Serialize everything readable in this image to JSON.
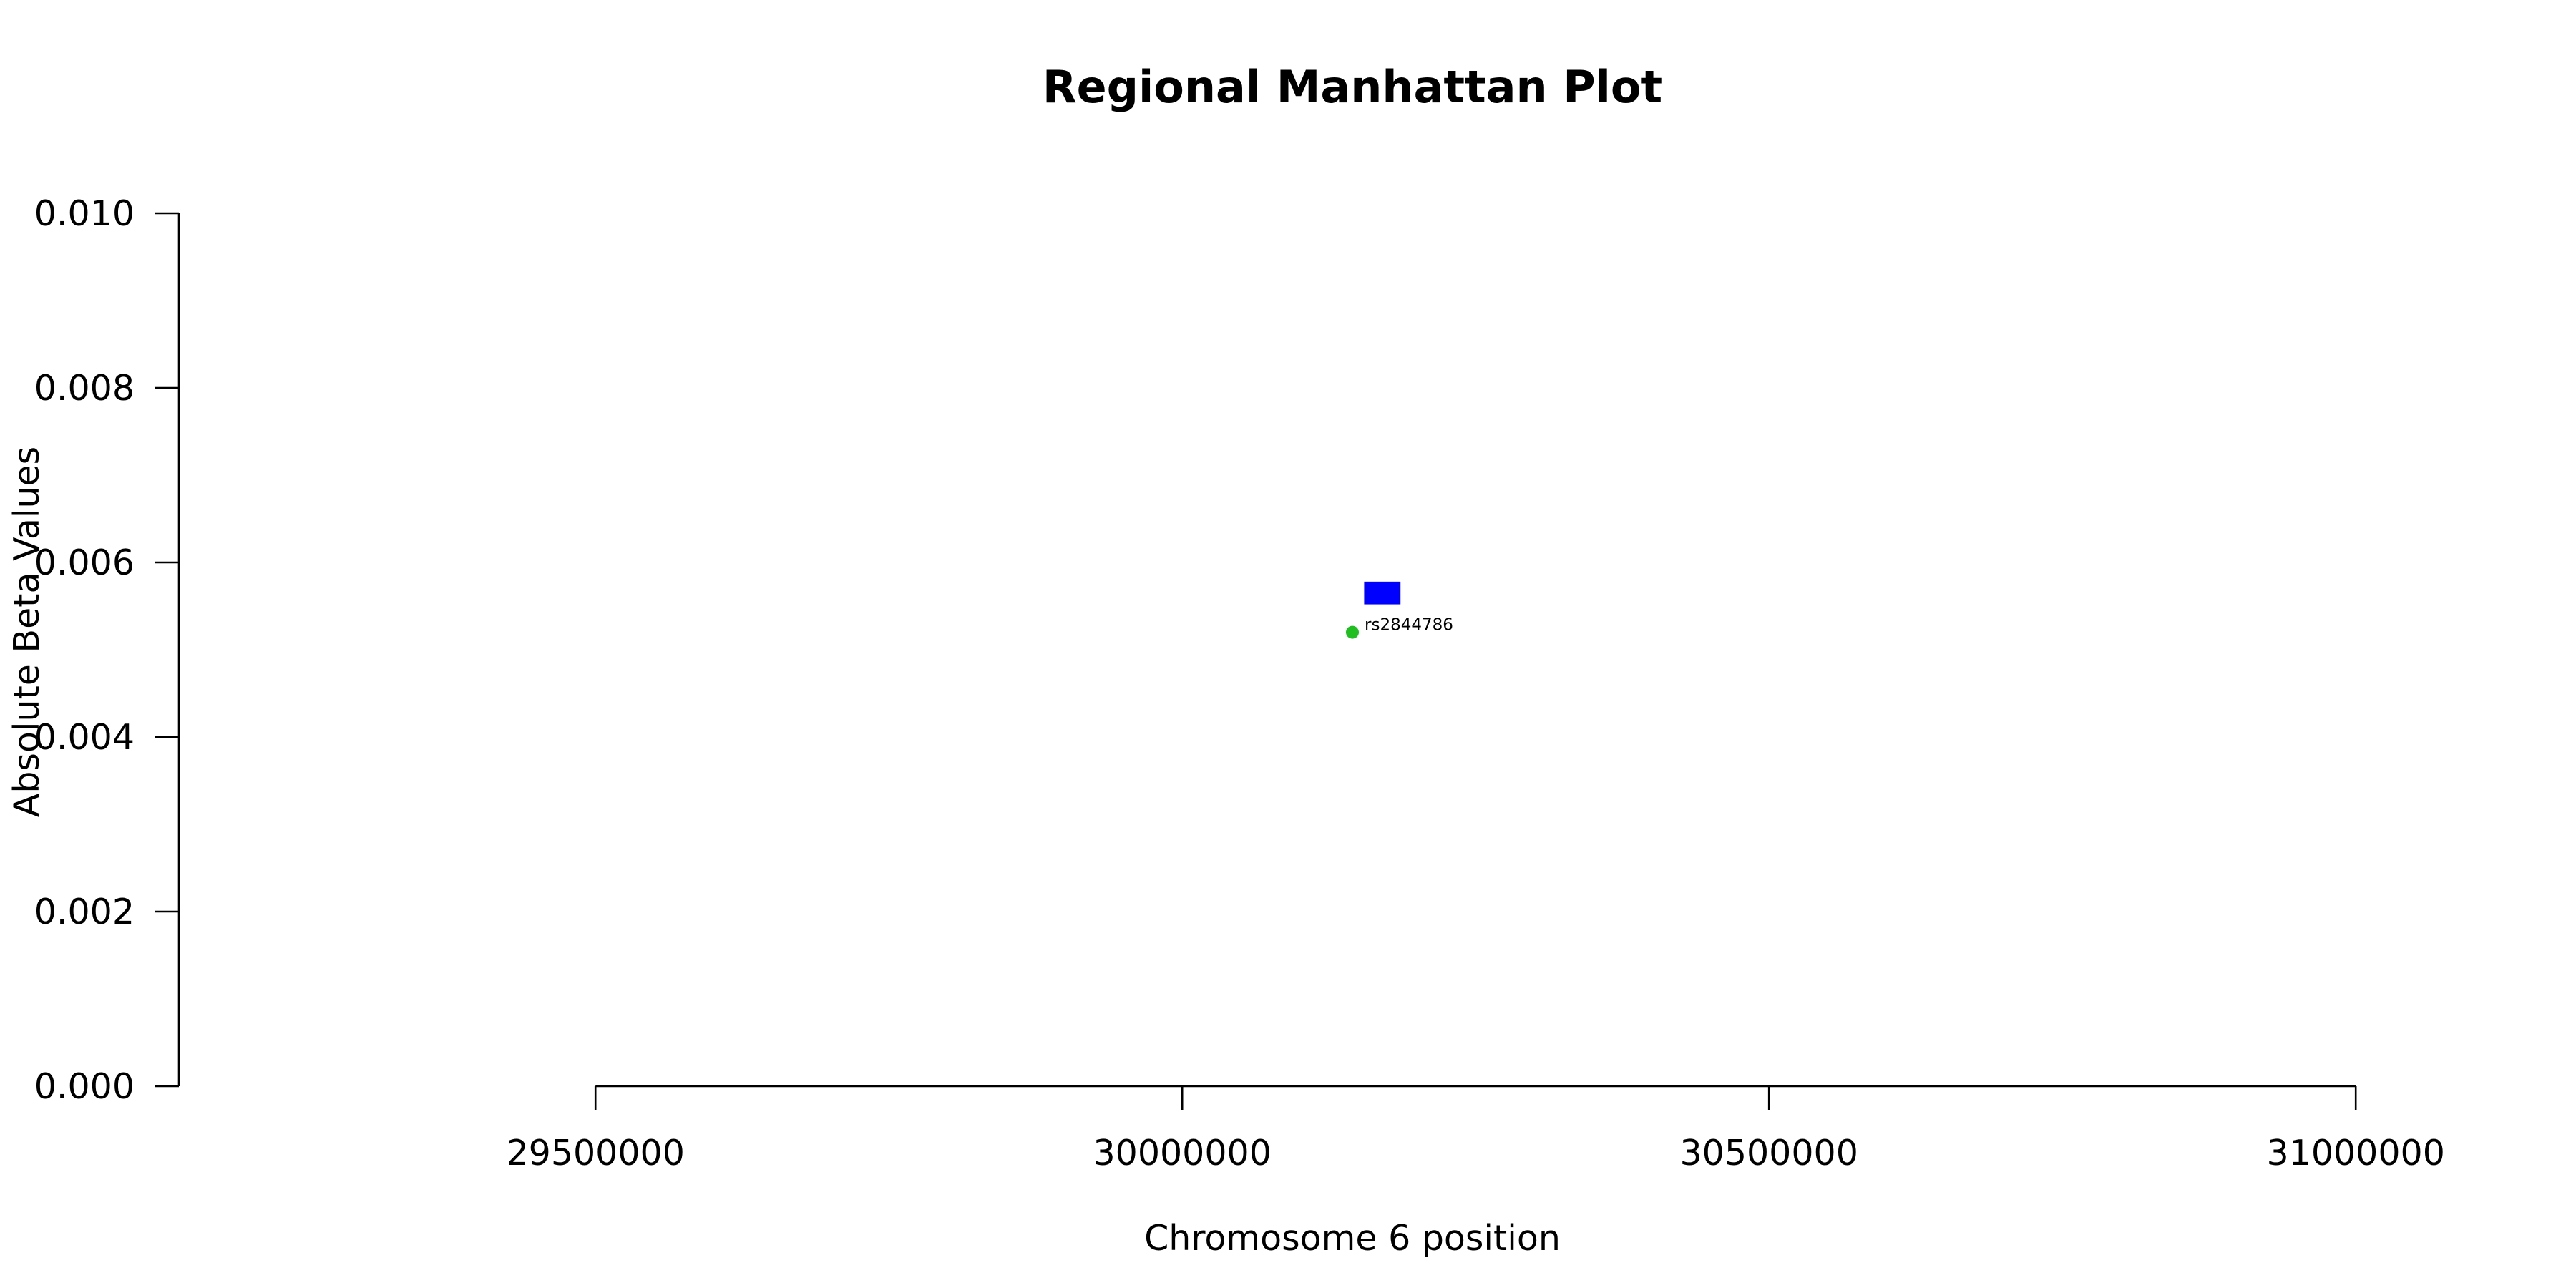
{
  "chart_data": {
    "type": "scatter",
    "title": "Regional Manhattan Plot",
    "xlabel": "Chromosome 6 position",
    "ylabel": "Absolute Beta Values",
    "xlim": [
      29145000,
      31145000
    ],
    "ylim": [
      0,
      0.01
    ],
    "x_ticks": [
      29500000,
      30000000,
      30500000,
      31000000
    ],
    "y_ticks": [
      "0.000",
      "0.002",
      "0.004",
      "0.006",
      "0.008",
      "0.010"
    ],
    "grid": false,
    "legend": false,
    "series": [
      {
        "marker": "circle",
        "color": "#1fbf1f",
        "points": [
          {
            "x": 30145000,
            "y": 0.0052,
            "label": "rs2844786"
          }
        ]
      }
    ],
    "gene_blocks": [
      {
        "x_start": 30155000,
        "x_end": 30186000,
        "y_low": 0.00552,
        "y_high": 0.00578,
        "color": "#0000ff"
      }
    ]
  }
}
